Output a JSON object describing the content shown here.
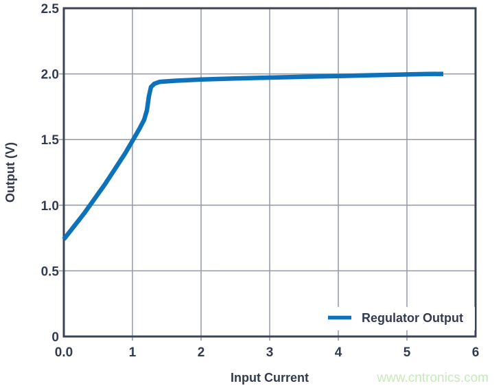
{
  "figure": {
    "watermark": "www.cntronics.com"
  },
  "colors": {
    "line": "#0d72b9",
    "grid": "#9199a7",
    "border": "#3b4357",
    "text": "#323c4e",
    "watermark": "#c7e9ba",
    "background": "#ffffff"
  },
  "chart_data": {
    "type": "line",
    "title": "",
    "xlabel": "Input Current",
    "ylabel": "Output (V)",
    "xlim": [
      0,
      6
    ],
    "ylim": [
      0,
      2.5
    ],
    "grid": true,
    "xticks": {
      "values": [
        0,
        1,
        2,
        3,
        4,
        5,
        6
      ],
      "labels": [
        "0.0",
        "1",
        "2",
        "3",
        "4",
        "5",
        "6"
      ]
    },
    "yticks": {
      "values": [
        0,
        0.5,
        1,
        1.5,
        2,
        2.5
      ],
      "labels": [
        "0",
        "0.5",
        "1.0",
        "1.5",
        "2.0",
        "2.5"
      ]
    },
    "legend": {
      "position": "lower right",
      "entries": [
        {
          "label": "Regulator Output",
          "color": "#0d72b9"
        }
      ]
    },
    "series": [
      {
        "name": "Regulator Output",
        "points": [
          [
            0,
            0.74
          ],
          [
            0.15,
            0.84
          ],
          [
            0.3,
            0.94
          ],
          [
            0.45,
            1.05
          ],
          [
            0.6,
            1.16
          ],
          [
            0.75,
            1.28
          ],
          [
            0.9,
            1.4
          ],
          [
            1.0,
            1.49
          ],
          [
            1.1,
            1.58
          ],
          [
            1.17,
            1.65
          ],
          [
            1.21,
            1.72
          ],
          [
            1.24,
            1.83
          ],
          [
            1.27,
            1.9
          ],
          [
            1.32,
            1.925
          ],
          [
            1.4,
            1.94
          ],
          [
            1.6,
            1.947
          ],
          [
            1.8,
            1.952
          ],
          [
            2.0,
            1.957
          ],
          [
            2.5,
            1.965
          ],
          [
            3.0,
            1.972
          ],
          [
            3.5,
            1.978
          ],
          [
            4.0,
            1.984
          ],
          [
            4.5,
            1.99
          ],
          [
            5.0,
            1.996
          ],
          [
            5.3,
            1.999
          ],
          [
            5.53,
            2.0
          ]
        ]
      }
    ]
  }
}
